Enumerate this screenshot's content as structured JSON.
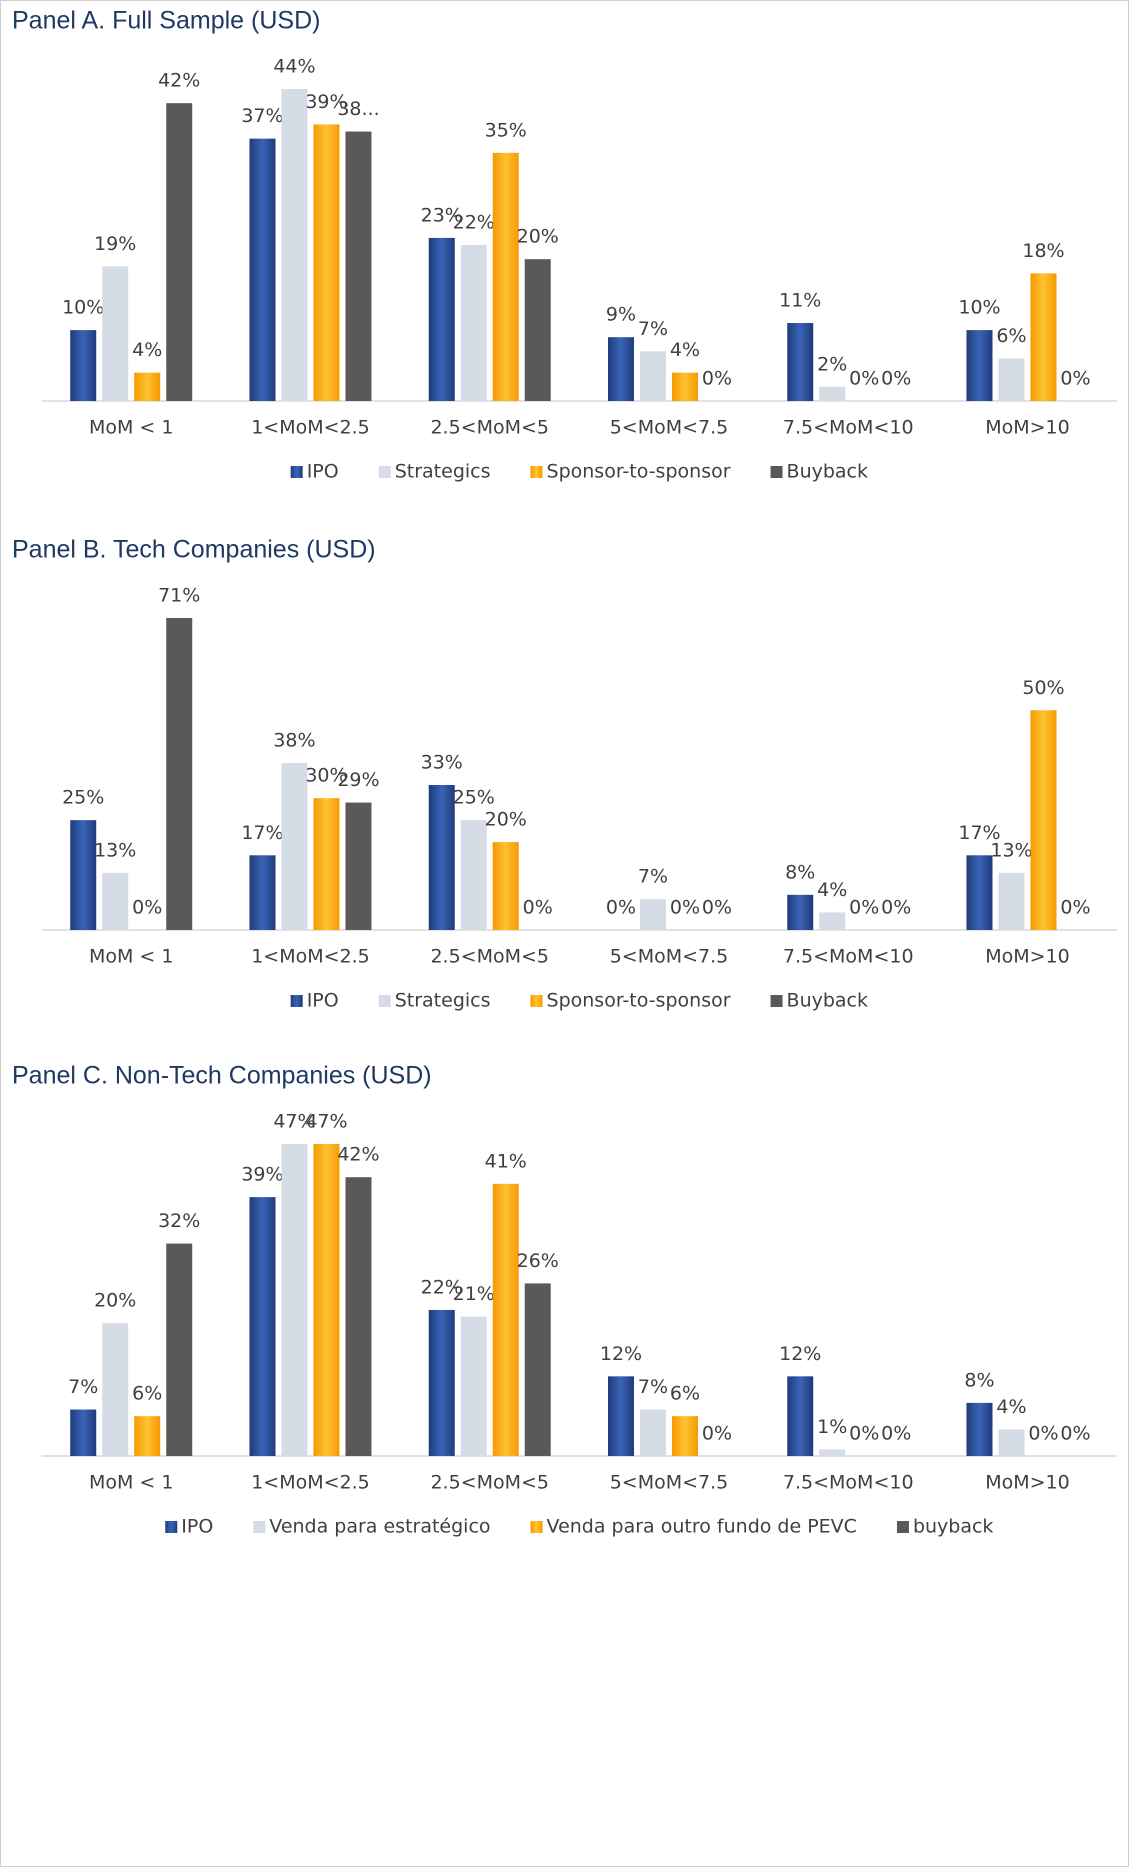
{
  "chart_data": [
    {
      "type": "bar",
      "title": "Panel A. Full Sample (USD)",
      "categories": [
        "MoM < 1",
        "1<MoM<2.5",
        "2.5<MoM<5",
        "5<MoM<7.5",
        "7.5<MoM<10",
        "MoM>10"
      ],
      "series": [
        {
          "name": "IPO",
          "color": "#2f55a4",
          "values": [
            10,
            37,
            23,
            9,
            11,
            10
          ],
          "value_labels": [
            "10%",
            "37%",
            "23%",
            "9%",
            "11%",
            "10%"
          ]
        },
        {
          "name": "Strategics",
          "color": "#d6dce5",
          "values": [
            19,
            44,
            22,
            7,
            2,
            6
          ],
          "value_labels": [
            "19%",
            "44%",
            "22%",
            "7%",
            "2%",
            "6%"
          ]
        },
        {
          "name": "Sponsor-to-sponsor",
          "color": "#ffac1a",
          "values": [
            4,
            39,
            35,
            4,
            0,
            18
          ],
          "value_labels": [
            "4%",
            "39%",
            "35%",
            "4%",
            "0%",
            "18%"
          ]
        },
        {
          "name": "Buyback",
          "color": "#595959",
          "values": [
            42,
            38,
            20,
            0,
            0,
            0
          ],
          "value_labels": [
            "42%",
            "38...",
            "20%",
            "0%",
            "0%",
            "0%"
          ]
        }
      ]
    },
    {
      "type": "bar",
      "title": "Panel B. Tech Companies (USD)",
      "categories": [
        "MoM < 1",
        "1<MoM<2.5",
        "2.5<MoM<5",
        "5<MoM<7.5",
        "7.5<MoM<10",
        "MoM>10"
      ],
      "series": [
        {
          "name": "IPO",
          "color": "#2f55a4",
          "values": [
            25,
            17,
            33,
            0,
            8,
            17
          ],
          "value_labels": [
            "25%",
            "17%",
            "33%",
            "0%",
            "8%",
            "17%"
          ]
        },
        {
          "name": "Strategics",
          "color": "#d6dce5",
          "values": [
            13,
            38,
            25,
            7,
            4,
            13
          ],
          "value_labels": [
            "13%",
            "38%",
            "25%",
            "7%",
            "4%",
            "13%"
          ]
        },
        {
          "name": "Sponsor-to-sponsor",
          "color": "#ffac1a",
          "values": [
            0,
            30,
            20,
            0,
            0,
            50
          ],
          "value_labels": [
            "0%",
            "30%",
            "20%",
            "0%",
            "0%",
            "50%"
          ]
        },
        {
          "name": "Buyback",
          "color": "#595959",
          "values": [
            71,
            29,
            0,
            0,
            0,
            0
          ],
          "value_labels": [
            "71%",
            "29%",
            "0%",
            "0%",
            "0%",
            "0%"
          ]
        }
      ]
    },
    {
      "type": "bar",
      "title": "Panel C. Non-Tech Companies (USD)",
      "categories": [
        "MoM < 1",
        "1<MoM<2.5",
        "2.5<MoM<5",
        "5<MoM<7.5",
        "7.5<MoM<10",
        "MoM>10"
      ],
      "series": [
        {
          "name": "IPO",
          "color": "#2f55a4",
          "values": [
            7,
            39,
            22,
            12,
            12,
            8
          ],
          "value_labels": [
            "7%",
            "39%",
            "22%",
            "12%",
            "12%",
            "8%"
          ]
        },
        {
          "name": "Venda para estratégico",
          "color": "#d6dce5",
          "values": [
            20,
            47,
            21,
            7,
            1,
            4
          ],
          "value_labels": [
            "20%",
            "47%",
            "21%",
            "7%",
            "1%",
            "4%"
          ]
        },
        {
          "name": "Venda para outro fundo de PEVC",
          "color": "#ffac1a",
          "values": [
            6,
            47,
            41,
            6,
            0,
            0
          ],
          "value_labels": [
            "6%",
            "47%",
            "41%",
            "6%",
            "0%",
            "0%"
          ]
        },
        {
          "name": "buyback",
          "color": "#595959",
          "values": [
            32,
            42,
            26,
            0,
            0,
            0
          ],
          "value_labels": [
            "32%",
            "42%",
            "26%",
            "0%",
            "0%",
            "0%"
          ]
        }
      ]
    }
  ]
}
